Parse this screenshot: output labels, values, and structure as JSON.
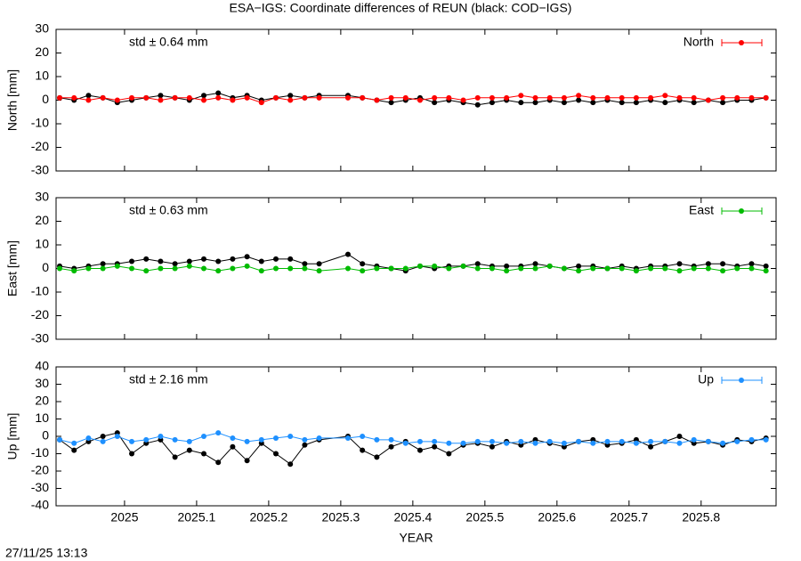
{
  "title": "ESA−IGS: Coordinate differences of REUN (black: COD−IGS)",
  "timestamp": "27/11/25 13:13",
  "chart_data": [
    {
      "type": "line",
      "ylabel": "North [mm]",
      "annotation": "std ± 0.64 mm",
      "x": [
        2024.91,
        2024.93,
        2024.95,
        2024.97,
        2024.99,
        2025.01,
        2025.03,
        2025.05,
        2025.07,
        2025.09,
        2025.11,
        2025.13,
        2025.15,
        2025.17,
        2025.19,
        2025.21,
        2025.23,
        2025.25,
        2025.27,
        2025.31,
        2025.33,
        2025.35,
        2025.37,
        2025.39,
        2025.41,
        2025.43,
        2025.45,
        2025.47,
        2025.49,
        2025.51,
        2025.53,
        2025.55,
        2025.57,
        2025.59,
        2025.61,
        2025.63,
        2025.65,
        2025.67,
        2025.69,
        2025.71,
        2025.73,
        2025.75,
        2025.77,
        2025.79,
        2025.81,
        2025.83,
        2025.85,
        2025.87,
        2025.89
      ],
      "series": [
        {
          "color": "#000000",
          "values": [
            1,
            0,
            2,
            1,
            -1,
            0,
            1,
            2,
            1,
            0,
            2,
            3,
            1,
            2,
            0,
            1,
            2,
            1,
            2,
            2,
            1,
            0,
            -1,
            0,
            1,
            -1,
            0,
            -1,
            -2,
            -1,
            0,
            -1,
            -1,
            0,
            -1,
            0,
            -1,
            0,
            -1,
            -1,
            0,
            -1,
            0,
            -1,
            0,
            -1,
            0,
            0,
            1
          ]
        },
        {
          "name": "North",
          "color": "#ff0000",
          "values": [
            1,
            1,
            0,
            1,
            0,
            1,
            1,
            0,
            1,
            1,
            0,
            1,
            0,
            1,
            -1,
            1,
            0,
            1,
            1,
            1,
            1,
            0,
            1,
            1,
            0,
            1,
            1,
            0,
            1,
            1,
            1,
            2,
            1,
            1,
            1,
            2,
            1,
            1,
            1,
            1,
            1,
            2,
            1,
            1,
            0,
            1,
            1,
            1,
            1
          ]
        }
      ],
      "xlim": [
        2024.905,
        2025.904
      ],
      "xticks": [
        2025,
        2025.1,
        2025.2,
        2025.3,
        2025.4,
        2025.5,
        2025.6,
        2025.7,
        2025.8
      ],
      "ylim": [
        -30,
        30
      ],
      "yticks": [
        -30,
        -20,
        -10,
        0,
        10,
        20,
        30
      ]
    },
    {
      "type": "line",
      "ylabel": "East [mm]",
      "annotation": "std ± 0.63 mm",
      "x": [
        2024.91,
        2024.93,
        2024.95,
        2024.97,
        2024.99,
        2025.01,
        2025.03,
        2025.05,
        2025.07,
        2025.09,
        2025.11,
        2025.13,
        2025.15,
        2025.17,
        2025.19,
        2025.21,
        2025.23,
        2025.25,
        2025.27,
        2025.31,
        2025.33,
        2025.35,
        2025.37,
        2025.39,
        2025.41,
        2025.43,
        2025.45,
        2025.47,
        2025.49,
        2025.51,
        2025.53,
        2025.55,
        2025.57,
        2025.59,
        2025.61,
        2025.63,
        2025.65,
        2025.67,
        2025.69,
        2025.71,
        2025.73,
        2025.75,
        2025.77,
        2025.79,
        2025.81,
        2025.83,
        2025.85,
        2025.87,
        2025.89
      ],
      "series": [
        {
          "color": "#000000",
          "values": [
            1,
            0,
            1,
            2,
            2,
            3,
            4,
            3,
            2,
            3,
            4,
            3,
            4,
            5,
            3,
            4,
            4,
            2,
            2,
            6,
            2,
            1,
            0,
            -1,
            1,
            0,
            1,
            1,
            2,
            1,
            1,
            1,
            2,
            1,
            0,
            1,
            1,
            0,
            1,
            0,
            1,
            1,
            2,
            1,
            2,
            2,
            1,
            2,
            1
          ]
        },
        {
          "name": "East",
          "color": "#00bb00",
          "values": [
            0,
            -1,
            0,
            0,
            1,
            0,
            -1,
            0,
            0,
            1,
            0,
            -1,
            0,
            1,
            -1,
            0,
            0,
            0,
            -1,
            0,
            -1,
            0,
            0,
            0,
            1,
            1,
            0,
            1,
            0,
            0,
            -1,
            0,
            0,
            1,
            0,
            -1,
            0,
            0,
            0,
            -1,
            0,
            0,
            -1,
            0,
            0,
            -1,
            0,
            0,
            -1
          ]
        }
      ],
      "xlim": [
        2024.905,
        2025.904
      ],
      "xticks": [
        2025,
        2025.1,
        2025.2,
        2025.3,
        2025.4,
        2025.5,
        2025.6,
        2025.7,
        2025.8
      ],
      "ylim": [
        -30,
        30
      ],
      "yticks": [
        -30,
        -20,
        -10,
        0,
        10,
        20,
        30
      ]
    },
    {
      "type": "line",
      "ylabel": "Up [mm]",
      "annotation": "std ± 2.16 mm",
      "xlabel": "YEAR",
      "x": [
        2024.91,
        2024.93,
        2024.95,
        2024.97,
        2024.99,
        2025.01,
        2025.03,
        2025.05,
        2025.07,
        2025.09,
        2025.11,
        2025.13,
        2025.15,
        2025.17,
        2025.19,
        2025.21,
        2025.23,
        2025.25,
        2025.27,
        2025.31,
        2025.33,
        2025.35,
        2025.37,
        2025.39,
        2025.41,
        2025.43,
        2025.45,
        2025.47,
        2025.49,
        2025.51,
        2025.53,
        2025.55,
        2025.57,
        2025.59,
        2025.61,
        2025.63,
        2025.65,
        2025.67,
        2025.69,
        2025.71,
        2025.73,
        2025.75,
        2025.77,
        2025.79,
        2025.81,
        2025.83,
        2025.85,
        2025.87,
        2025.89
      ],
      "series": [
        {
          "color": "#000000",
          "values": [
            -2,
            -8,
            -3,
            0,
            2,
            -10,
            -4,
            -2,
            -12,
            -8,
            -10,
            -15,
            -6,
            -14,
            -4,
            -10,
            -16,
            -5,
            -2,
            0,
            -8,
            -12,
            -6,
            -3,
            -8,
            -6,
            -10,
            -5,
            -4,
            -6,
            -3,
            -5,
            -2,
            -4,
            -6,
            -3,
            -2,
            -5,
            -4,
            -2,
            -6,
            -3,
            0,
            -4,
            -3,
            -5,
            -2,
            -3,
            -1
          ]
        },
        {
          "name": "Up",
          "color": "#1e90ff",
          "values": [
            -2,
            -4,
            -1,
            -3,
            0,
            -3,
            -2,
            0,
            -2,
            -3,
            0,
            2,
            -1,
            -3,
            -2,
            -1,
            0,
            -2,
            -1,
            -1,
            0,
            -2,
            -2,
            -4,
            -3,
            -3,
            -4,
            -4,
            -3,
            -3,
            -4,
            -3,
            -4,
            -3,
            -4,
            -3,
            -4,
            -3,
            -3,
            -4,
            -3,
            -3,
            -4,
            -2,
            -3,
            -4,
            -3,
            -2,
            -2
          ]
        }
      ],
      "xlim": [
        2024.905,
        2025.904
      ],
      "xticks": [
        2025,
        2025.1,
        2025.2,
        2025.3,
        2025.4,
        2025.5,
        2025.6,
        2025.7,
        2025.8
      ],
      "ylim": [
        -40,
        40
      ],
      "yticks": [
        -40,
        -30,
        -20,
        -10,
        0,
        10,
        20,
        30,
        40
      ]
    }
  ]
}
